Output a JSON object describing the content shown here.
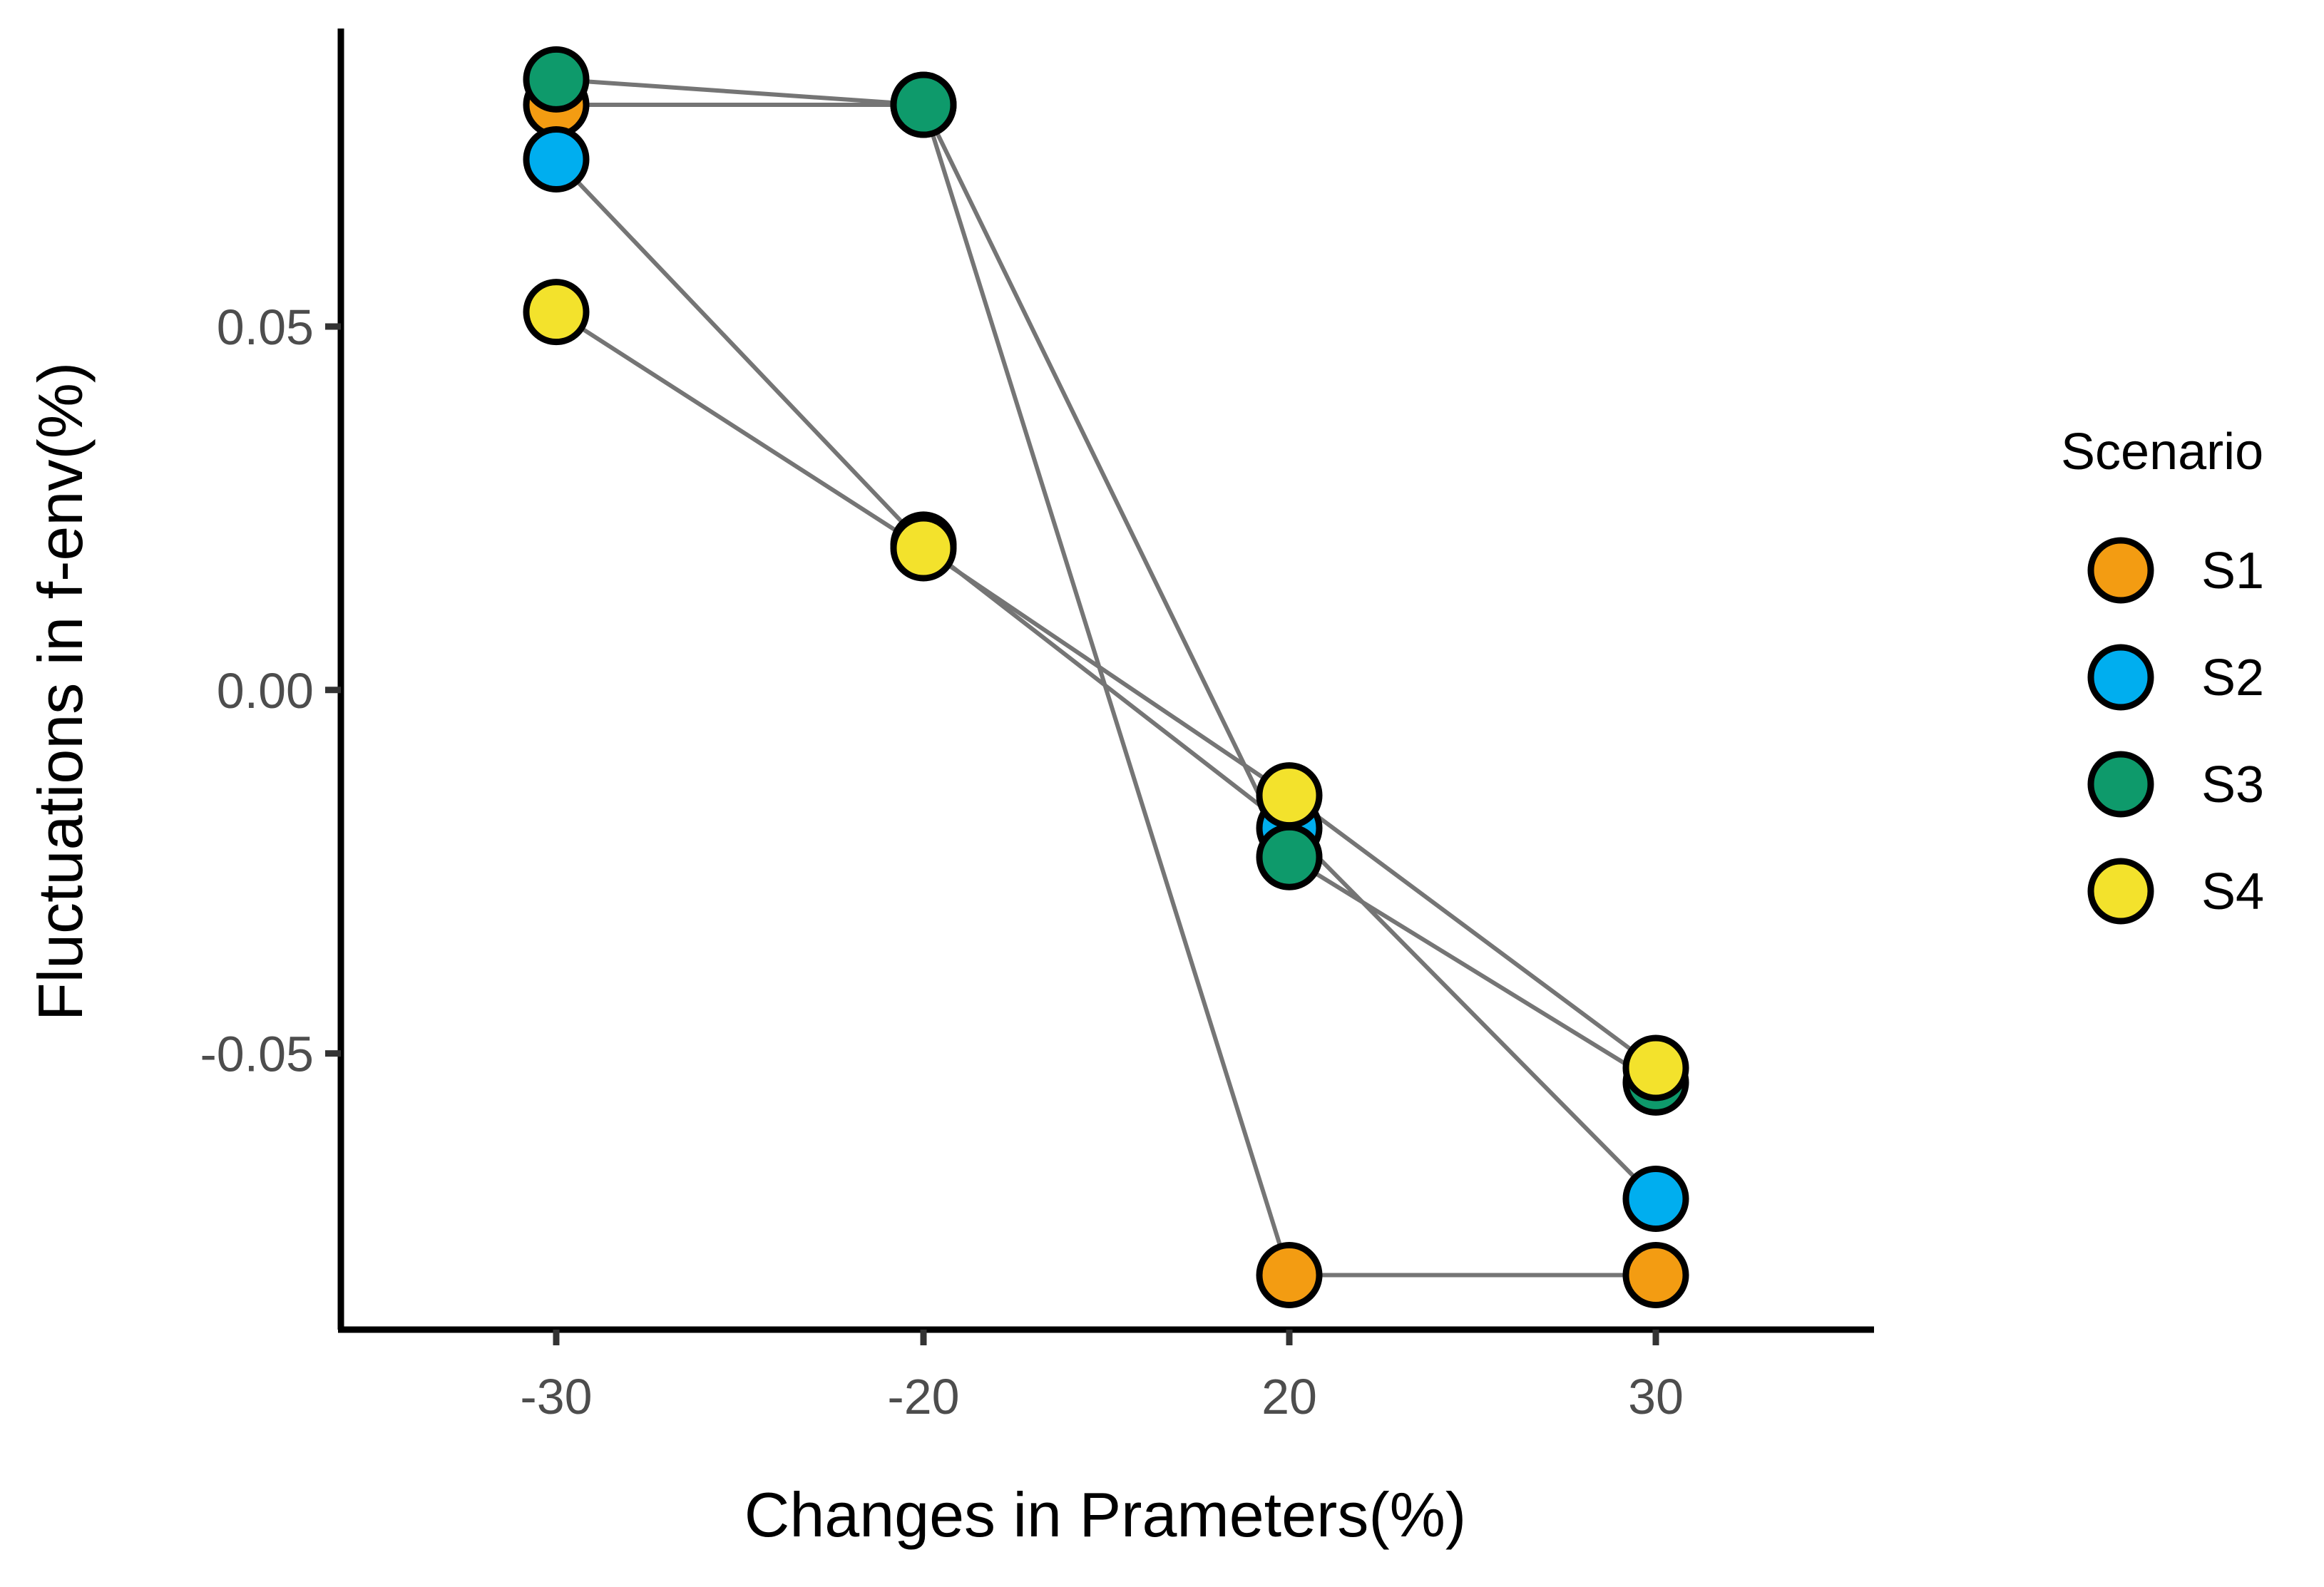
{
  "chart_data": {
    "type": "line",
    "title": "",
    "xlabel": "Changes in Prameters(%)",
    "ylabel": "Fluctuations in f-env(%)",
    "categories": [
      "-30",
      "-20",
      "20",
      "30"
    ],
    "yticks": [
      0.05,
      0.0,
      -0.05
    ],
    "ytick_labels": [
      "0.05",
      "0.00",
      "-0.05"
    ],
    "ylim": [
      -0.088,
      0.091
    ],
    "grid": false,
    "legend": {
      "title": "Scenario",
      "position": "right"
    },
    "line_color": "#757575",
    "series": [
      {
        "name": "S1",
        "color": "#F39C12",
        "values": [
          0.0805,
          0.0805,
          -0.0805,
          -0.0805
        ]
      },
      {
        "name": "S2",
        "color": "#00AEEF",
        "values": [
          0.073,
          0.02,
          -0.019,
          -0.07
        ]
      },
      {
        "name": "S3",
        "color": "#0E9A6B",
        "values": [
          0.084,
          0.0805,
          -0.023,
          -0.054
        ]
      },
      {
        "name": "S4",
        "color": "#F3E22C",
        "values": [
          0.052,
          0.0195,
          -0.0145,
          -0.052
        ]
      }
    ]
  }
}
